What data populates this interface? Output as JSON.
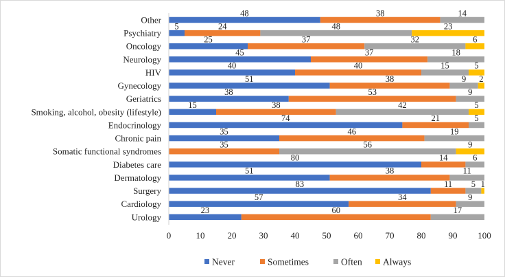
{
  "chart_data": {
    "type": "bar",
    "orientation": "horizontal",
    "stacked": true,
    "title": "",
    "xlabel": "",
    "ylabel": "",
    "xlim": [
      0,
      100
    ],
    "xticks": [
      0,
      10,
      20,
      30,
      40,
      50,
      60,
      70,
      80,
      90,
      100
    ],
    "grid": false,
    "legend_position": "bottom",
    "categories": [
      "Other",
      "Psychiatry",
      "Oncology",
      "Neurology",
      "HIV",
      "Gynecology",
      "Geriatrics",
      "Smoking, alcohol, obesity (lifestyle)",
      "Endocrinology",
      "Chronic pain",
      "Somatic functional syndromes",
      "Diabetes care",
      "Dermatology",
      "Surgery",
      "Cardiology",
      "Urology"
    ],
    "series": [
      {
        "name": "Never",
        "color": "#4472C4",
        "values": [
          48,
          5,
          25,
          45,
          40,
          51,
          38,
          15,
          74,
          35,
          0,
          80,
          51,
          83,
          57,
          23
        ],
        "labels": [
          "48",
          "5",
          "25",
          "45",
          "40",
          "51",
          "38",
          "15",
          "74",
          "35",
          "",
          "80",
          "51",
          "83",
          "57",
          "23"
        ]
      },
      {
        "name": "Sometimes",
        "color": "#ED7D31",
        "values": [
          38,
          24,
          37,
          37,
          40,
          38,
          53,
          38,
          21,
          46,
          35,
          14,
          38,
          11,
          34,
          60
        ],
        "labels": [
          "38",
          "24",
          "37",
          "37",
          "40",
          "38",
          "53",
          "38",
          "21",
          "46",
          "35",
          "14",
          "38",
          "11",
          "34",
          "60"
        ]
      },
      {
        "name": "Often",
        "color": "#A5A5A5",
        "values": [
          14,
          48,
          32,
          18,
          15,
          9,
          9,
          42,
          5,
          19,
          56,
          6,
          11,
          5,
          9,
          17
        ],
        "labels": [
          "14",
          "48",
          "32",
          "18",
          "15",
          "9",
          "9",
          "42",
          "5",
          "19",
          "56",
          "6",
          "11",
          "5",
          "9",
          "17"
        ]
      },
      {
        "name": "Always",
        "color": "#FFC000",
        "values": [
          0,
          23,
          6,
          0,
          5,
          2,
          0,
          5,
          0,
          0,
          9,
          0,
          0,
          1,
          0,
          0
        ],
        "labels": [
          "",
          "23",
          "6",
          "",
          "5",
          "2",
          "",
          "5",
          "",
          "",
          "9",
          "",
          "",
          "1",
          "",
          ""
        ]
      }
    ]
  }
}
